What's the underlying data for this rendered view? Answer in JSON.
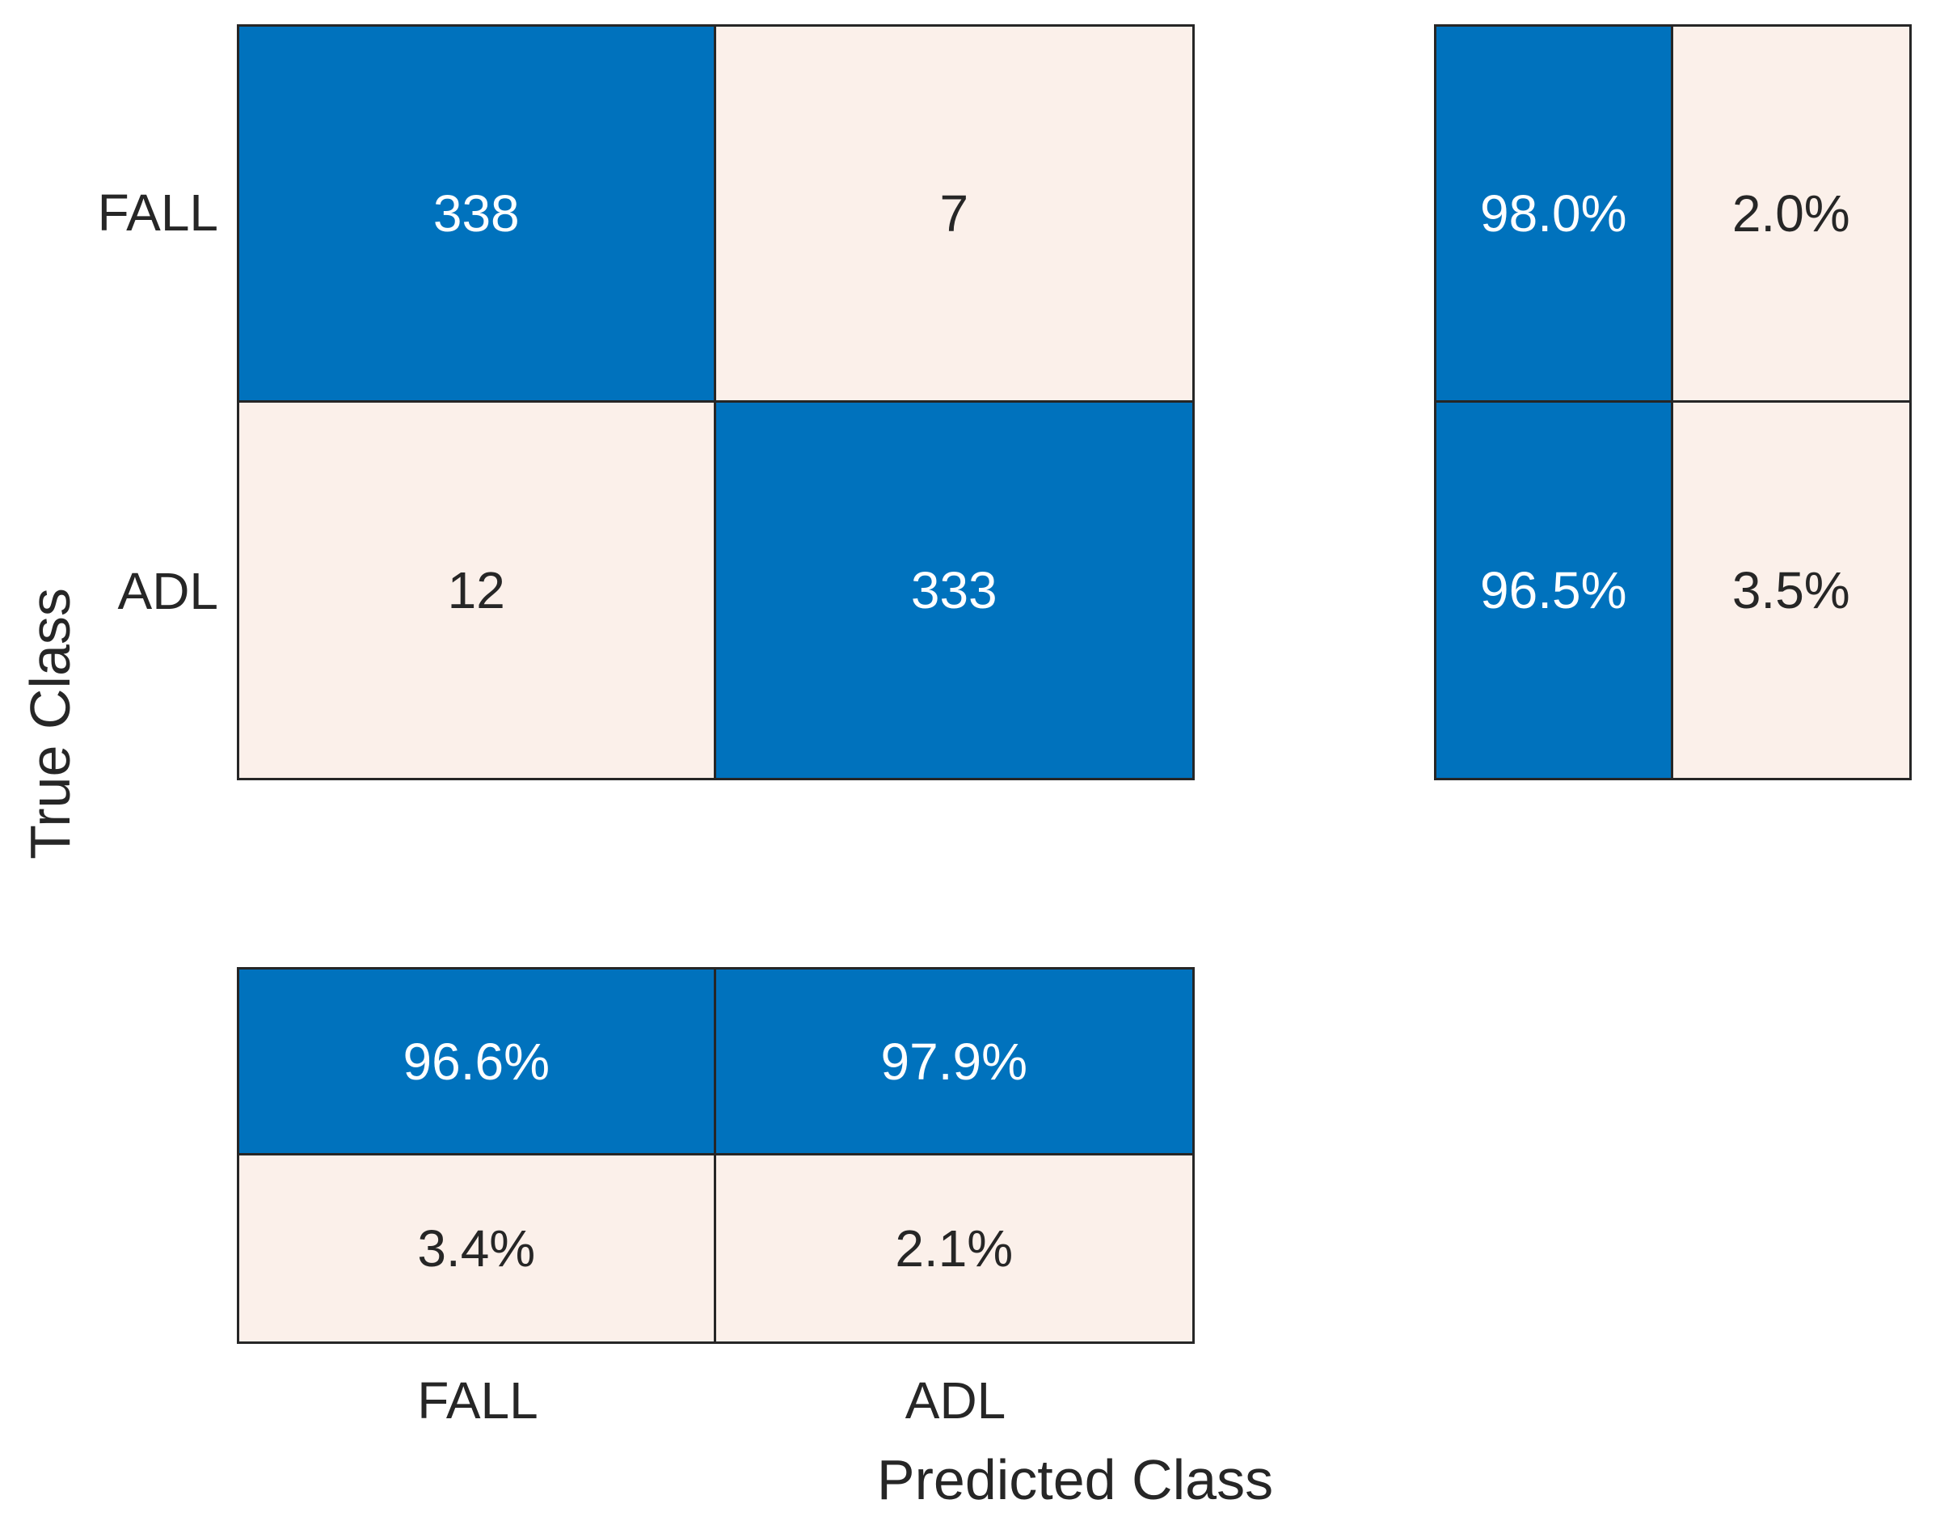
{
  "chart_data": {
    "type": "heatmap",
    "subtype": "confusion-matrix",
    "title": "",
    "xlabel": "Predicted Class",
    "ylabel": "True Class",
    "classes": [
      "FALL",
      "ADL"
    ],
    "x_tick_labels": [
      "FALL",
      "ADL"
    ],
    "y_tick_labels": [
      "FALL",
      "ADL"
    ],
    "counts": [
      [
        338,
        7
      ],
      [
        12,
        333
      ]
    ],
    "cell_labels": [
      [
        "338",
        "7"
      ],
      [
        "12",
        "333"
      ]
    ],
    "row_summary": [
      [
        "98.0%",
        "2.0%"
      ],
      [
        "96.5%",
        "3.5%"
      ]
    ],
    "column_summary": [
      [
        "96.6%",
        "97.9%"
      ],
      [
        "3.4%",
        "2.1%"
      ]
    ],
    "legend_position": "none",
    "grid": false,
    "colors": {
      "diagonal": "#0072BD",
      "off_diagonal": "#FBF0EA",
      "border": "#262626",
      "text_on_blue": "#FFFFFF",
      "text_on_light": "#262626",
      "label": "#262626"
    }
  }
}
